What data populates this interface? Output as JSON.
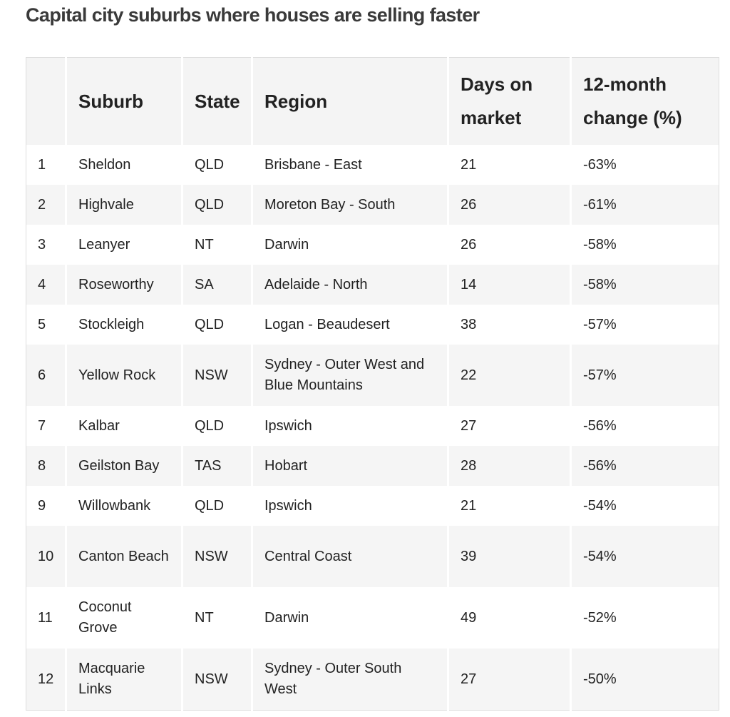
{
  "title": "Capital city suburbs where houses are selling faster",
  "table": {
    "headers": [
      "",
      "Suburb",
      "State",
      "Region",
      "Days on market",
      "12-month change (%)"
    ],
    "rows": [
      [
        "1",
        "Sheldon",
        "QLD",
        "Brisbane - East",
        "21",
        "-63%"
      ],
      [
        "2",
        "Highvale",
        "QLD",
        "Moreton Bay - South",
        "26",
        "-61%"
      ],
      [
        "3",
        "Leanyer",
        "NT",
        "Darwin",
        "26",
        "-58%"
      ],
      [
        "4",
        "Roseworthy",
        "SA",
        "Adelaide - North",
        "14",
        "-58%"
      ],
      [
        "5",
        "Stockleigh",
        "QLD",
        "Logan - Beaudesert",
        "38",
        "-57%"
      ],
      [
        "6",
        "Yellow Rock",
        "NSW",
        "Sydney - Outer West and Blue Mountains",
        "22",
        "-57%"
      ],
      [
        "7",
        "Kalbar",
        "QLD",
        "Ipswich",
        "27",
        "-56%"
      ],
      [
        "8",
        "Geilston Bay",
        "TAS",
        "Hobart",
        "28",
        "-56%"
      ],
      [
        "9",
        "Willowbank",
        "QLD",
        "Ipswich",
        "21",
        "-54%"
      ],
      [
        "10",
        "Canton Beach",
        "NSW",
        "Central Coast",
        "39",
        "-54%"
      ],
      [
        "11",
        "Coconut Grove",
        "NT",
        "Darwin",
        "49",
        "-52%"
      ],
      [
        "12",
        "Macquarie Links",
        "NSW",
        "Sydney - Outer South West",
        "27",
        "-50%"
      ]
    ]
  }
}
